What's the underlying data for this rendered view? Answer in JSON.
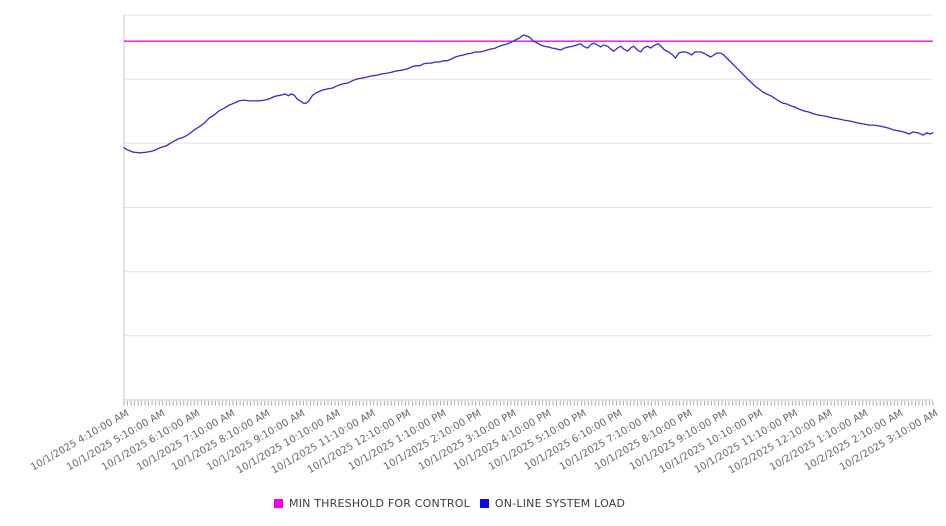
{
  "chart_data": {
    "type": "line",
    "title": "",
    "xlabel": "",
    "ylabel": "",
    "x_axis": {
      "tick_labels": [
        "10/1/2025 4:10:00 AM",
        "10/1/2025 5:10:00 AM",
        "10/1/2025 6:10:00 AM",
        "10/1/2025 7:10:00 AM",
        "10/1/2025 8:10:00 AM",
        "10/1/2025 9:10:00 AM",
        "10/1/2025 10:10:00 AM",
        "10/1/2025 11:10:00 AM",
        "10/1/2025 12:10:00 PM",
        "10/1/2025 1:10:00 PM",
        "10/1/2025 2:10:00 PM",
        "10/1/2025 3:10:00 PM",
        "10/1/2025 4:10:00 PM",
        "10/1/2025 5:10:00 PM",
        "10/1/2025 6:10:00 PM",
        "10/1/2025 7:10:00 PM",
        "10/1/2025 8:10:00 PM",
        "10/1/2025 9:10:00 PM",
        "10/1/2025 10:10:00 PM",
        "10/1/2025 11:10:00 PM",
        "10/2/2025 12:10:00 AM",
        "10/2/2025 1:10:00 AM",
        "10/2/2025 2:10:00 AM",
        "10/2/2025 3:10:00 AM"
      ],
      "range_hours": [
        0,
        23
      ],
      "minor_tick_minutes": 6
    },
    "y_axis": {
      "tick_labels_visible": false,
      "normalized_range": [
        0,
        100
      ],
      "gridline_values": [
        100,
        83.3,
        66.7,
        50,
        33.3,
        16.7,
        0
      ]
    },
    "legend_position": "bottom-center",
    "grid": "horizontal-only",
    "series": [
      {
        "name": "MIN THRESHOLD FOR CONTROL",
        "kind": "threshold",
        "color": "#e012e0",
        "value": 93.2
      },
      {
        "name": "ON-LINE SYSTEM LOAD",
        "kind": "line",
        "color": "#2f2fc4",
        "points": [
          [
            0,
            65.5
          ],
          [
            0.11,
            64.9
          ],
          [
            0.26,
            64.4
          ],
          [
            0.46,
            64.2
          ],
          [
            0.65,
            64.4
          ],
          [
            0.83,
            64.7
          ],
          [
            1.02,
            65.5
          ],
          [
            1.2,
            66
          ],
          [
            1.37,
            67
          ],
          [
            1.54,
            67.8
          ],
          [
            1.71,
            68.3
          ],
          [
            1.85,
            69.1
          ],
          [
            1.99,
            70.1
          ],
          [
            2.13,
            70.9
          ],
          [
            2.28,
            71.9
          ],
          [
            2.42,
            73.2
          ],
          [
            2.56,
            74
          ],
          [
            2.7,
            75.1
          ],
          [
            2.85,
            75.8
          ],
          [
            2.99,
            76.6
          ],
          [
            3.13,
            77.1
          ],
          [
            3.27,
            77.7
          ],
          [
            3.42,
            77.9
          ],
          [
            3.56,
            77.7
          ],
          [
            3.7,
            77.7
          ],
          [
            3.84,
            77.7
          ],
          [
            3.99,
            77.9
          ],
          [
            4.13,
            78.2
          ],
          [
            4.24,
            78.7
          ],
          [
            4.35,
            79
          ],
          [
            4.47,
            79.2
          ],
          [
            4.58,
            79.5
          ],
          [
            4.67,
            79
          ],
          [
            4.75,
            79.5
          ],
          [
            4.84,
            79.2
          ],
          [
            4.92,
            78.2
          ],
          [
            5.01,
            77.7
          ],
          [
            5.1,
            77.1
          ],
          [
            5.18,
            77.1
          ],
          [
            5.27,
            77.9
          ],
          [
            5.35,
            79
          ],
          [
            5.44,
            79.7
          ],
          [
            5.52,
            80
          ],
          [
            5.64,
            80.5
          ],
          [
            5.78,
            80.8
          ],
          [
            5.92,
            81
          ],
          [
            6.06,
            81.6
          ],
          [
            6.21,
            82.1
          ],
          [
            6.35,
            82.3
          ],
          [
            6.49,
            82.9
          ],
          [
            6.63,
            83.4
          ],
          [
            6.77,
            83.6
          ],
          [
            6.92,
            83.9
          ],
          [
            7.06,
            84.2
          ],
          [
            7.2,
            84.4
          ],
          [
            7.34,
            84.7
          ],
          [
            7.49,
            84.9
          ],
          [
            7.63,
            85.2
          ],
          [
            7.77,
            85.5
          ],
          [
            7.91,
            85.7
          ],
          [
            8.06,
            86
          ],
          [
            8.17,
            86.5
          ],
          [
            8.28,
            86.8
          ],
          [
            8.4,
            86.8
          ],
          [
            8.51,
            87.3
          ],
          [
            8.62,
            87.5
          ],
          [
            8.74,
            87.5
          ],
          [
            8.85,
            87.8
          ],
          [
            8.97,
            87.8
          ],
          [
            9.08,
            88.1
          ],
          [
            9.19,
            88.1
          ],
          [
            9.31,
            88.6
          ],
          [
            9.42,
            89.1
          ],
          [
            9.54,
            89.4
          ],
          [
            9.65,
            89.6
          ],
          [
            9.76,
            89.9
          ],
          [
            9.88,
            90.1
          ],
          [
            9.99,
            90.4
          ],
          [
            10.11,
            90.4
          ],
          [
            10.22,
            90.6
          ],
          [
            10.33,
            90.9
          ],
          [
            10.45,
            91.2
          ],
          [
            10.56,
            91.4
          ],
          [
            10.67,
            91.9
          ],
          [
            10.79,
            92.2
          ],
          [
            10.9,
            92.5
          ],
          [
            11.02,
            93
          ],
          [
            11.13,
            93.5
          ],
          [
            11.24,
            94
          ],
          [
            11.36,
            94.8
          ],
          [
            11.47,
            94.5
          ],
          [
            11.56,
            94
          ],
          [
            11.64,
            93.2
          ],
          [
            11.76,
            92.7
          ],
          [
            11.84,
            92.2
          ],
          [
            11.96,
            91.9
          ],
          [
            12.07,
            91.7
          ],
          [
            12.18,
            91.4
          ],
          [
            12.3,
            91.2
          ],
          [
            12.41,
            90.9
          ],
          [
            12.52,
            91.4
          ],
          [
            12.64,
            91.7
          ],
          [
            12.75,
            91.9
          ],
          [
            12.87,
            92.2
          ],
          [
            12.98,
            92.5
          ],
          [
            13.06,
            91.9
          ],
          [
            13.18,
            91.4
          ],
          [
            13.26,
            92.2
          ],
          [
            13.35,
            92.7
          ],
          [
            13.46,
            92.2
          ],
          [
            13.55,
            91.7
          ],
          [
            13.63,
            92.2
          ],
          [
            13.75,
            91.9
          ],
          [
            13.83,
            91.2
          ],
          [
            13.92,
            90.6
          ],
          [
            14.03,
            91.4
          ],
          [
            14.12,
            91.9
          ],
          [
            14.2,
            91.2
          ],
          [
            14.32,
            90.6
          ],
          [
            14.4,
            91.4
          ],
          [
            14.49,
            91.9
          ],
          [
            14.6,
            90.9
          ],
          [
            14.69,
            90.4
          ],
          [
            14.77,
            91.4
          ],
          [
            14.89,
            91.9
          ],
          [
            14.97,
            91.4
          ],
          [
            15.09,
            92.2
          ],
          [
            15.2,
            92.5
          ],
          [
            15.29,
            91.7
          ],
          [
            15.37,
            90.9
          ],
          [
            15.49,
            90.4
          ],
          [
            15.6,
            89.6
          ],
          [
            15.68,
            88.8
          ],
          [
            15.77,
            90.1
          ],
          [
            15.86,
            90.4
          ],
          [
            15.97,
            90.4
          ],
          [
            16.05,
            90.1
          ],
          [
            16.14,
            89.6
          ],
          [
            16.23,
            90.4
          ],
          [
            16.31,
            90.4
          ],
          [
            16.4,
            90.4
          ],
          [
            16.48,
            90.1
          ],
          [
            16.57,
            89.6
          ],
          [
            16.68,
            89.1
          ],
          [
            16.77,
            89.6
          ],
          [
            16.85,
            90.1
          ],
          [
            16.97,
            90.1
          ],
          [
            17.05,
            89.6
          ],
          [
            17.14,
            88.8
          ],
          [
            17.25,
            87.8
          ],
          [
            17.36,
            86.8
          ],
          [
            17.48,
            85.7
          ],
          [
            17.59,
            84.7
          ],
          [
            17.7,
            83.6
          ],
          [
            17.82,
            82.6
          ],
          [
            17.93,
            81.6
          ],
          [
            18.05,
            80.8
          ],
          [
            18.16,
            80
          ],
          [
            18.27,
            79.5
          ],
          [
            18.39,
            79
          ],
          [
            18.5,
            78.4
          ],
          [
            18.61,
            77.7
          ],
          [
            18.73,
            77.1
          ],
          [
            18.84,
            76.9
          ],
          [
            18.96,
            76.4
          ],
          [
            19.07,
            76.1
          ],
          [
            19.18,
            75.6
          ],
          [
            19.33,
            75.1
          ],
          [
            19.47,
            74.8
          ],
          [
            19.61,
            74.3
          ],
          [
            19.75,
            74
          ],
          [
            19.9,
            73.8
          ],
          [
            20.04,
            73.5
          ],
          [
            20.18,
            73.2
          ],
          [
            20.32,
            73
          ],
          [
            20.47,
            72.7
          ],
          [
            20.61,
            72.5
          ],
          [
            20.75,
            72.2
          ],
          [
            20.89,
            71.9
          ],
          [
            21.04,
            71.7
          ],
          [
            21.18,
            71.4
          ],
          [
            21.32,
            71.4
          ],
          [
            21.46,
            71.2
          ],
          [
            21.61,
            70.9
          ],
          [
            21.75,
            70.6
          ],
          [
            21.89,
            70.1
          ],
          [
            22.03,
            69.9
          ],
          [
            22.17,
            69.6
          ],
          [
            22.32,
            69.1
          ],
          [
            22.43,
            69.6
          ],
          [
            22.57,
            69.4
          ],
          [
            22.72,
            68.8
          ],
          [
            22.83,
            69.4
          ],
          [
            22.91,
            69.1
          ],
          [
            23,
            69.4
          ]
        ]
      }
    ]
  },
  "legend": {
    "items": [
      {
        "label": "MIN THRESHOLD FOR CONTROL",
        "color": "#f200f2"
      },
      {
        "label": "ON-LINE SYSTEM LOAD",
        "color": "#0b0bf0"
      }
    ]
  },
  "colors": {
    "background": "#ffffff",
    "gridline": "#e3e3e3",
    "axis_border": "#c9c9c9",
    "minor_tick": "#9a9a9a",
    "tick_label": "#666666",
    "legend_text": "#3d3d3d"
  }
}
